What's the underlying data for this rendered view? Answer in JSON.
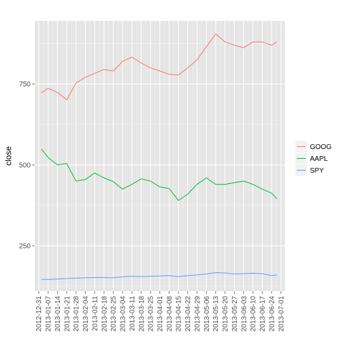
{
  "chart_data": {
    "type": "line",
    "xlabel": "",
    "ylabel": "close",
    "ylim": [
      110,
      945
    ],
    "y_ticks": [
      250,
      500,
      750
    ],
    "y_tick_labels": [
      "250",
      "500",
      "750"
    ],
    "x_tick_labels": [
      "2012-12-31",
      "2013-01-07",
      "2013-01-14",
      "2013-01-21",
      "2013-01-28",
      "2013-02-04",
      "2013-02-11",
      "2013-02-18",
      "2013-02-25",
      "2013-03-04",
      "2013-03-11",
      "2013-03-18",
      "2013-03-25",
      "2013-04-01",
      "2013-04-08",
      "2013-04-15",
      "2013-04-22",
      "2013-04-29",
      "2013-05-06",
      "2013-05-13",
      "2013-05-20",
      "2013-05-27",
      "2013-06-03",
      "2013-06-10",
      "2013-06-17",
      "2013-06-24",
      "2013-07-01"
    ],
    "grid": true,
    "legend_position": "right",
    "x": [
      "2013-01-02",
      "2013-01-07",
      "2013-01-14",
      "2013-01-21",
      "2013-01-28",
      "2013-02-04",
      "2013-02-11",
      "2013-02-18",
      "2013-02-25",
      "2013-03-04",
      "2013-03-11",
      "2013-03-18",
      "2013-03-25",
      "2013-04-01",
      "2013-04-08",
      "2013-04-15",
      "2013-04-22",
      "2013-04-29",
      "2013-05-06",
      "2013-05-13",
      "2013-05-20",
      "2013-05-27",
      "2013-06-03",
      "2013-06-10",
      "2013-06-17",
      "2013-06-24",
      "2013-06-28"
    ],
    "series": [
      {
        "name": "GOOG",
        "color": "#F8766D",
        "values": [
          723,
          737,
          724,
          701,
          753,
          771,
          783,
          795,
          790,
          820,
          833,
          815,
          800,
          790,
          780,
          778,
          800,
          825,
          865,
          905,
          880,
          870,
          862,
          880,
          880,
          870,
          880
        ]
      },
      {
        "name": "AAPL",
        "color": "#00BA38",
        "values": [
          549,
          523,
          500,
          504,
          450,
          455,
          475,
          460,
          448,
          425,
          440,
          457,
          450,
          432,
          427,
          390,
          410,
          440,
          460,
          440,
          440,
          445,
          450,
          440,
          425,
          413,
          395
        ]
      },
      {
        "name": "SPY",
        "color": "#619CFF",
        "values": [
          146,
          146,
          147,
          149,
          150,
          151,
          152,
          152,
          151,
          154,
          156,
          155,
          156,
          157,
          158,
          155,
          158,
          160,
          163,
          167,
          166,
          163,
          164,
          165,
          164,
          158,
          160
        ]
      }
    ]
  }
}
